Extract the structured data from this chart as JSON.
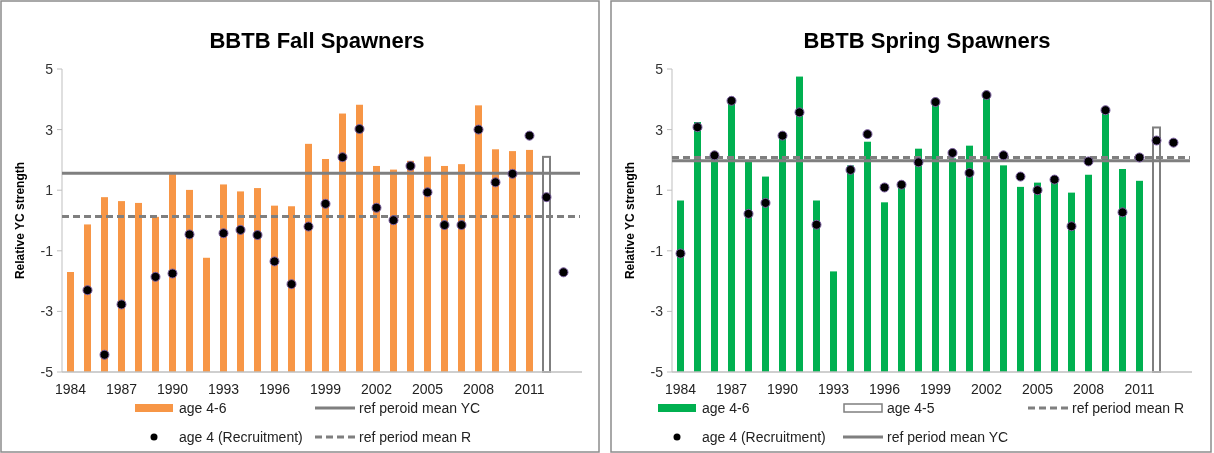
{
  "chart_data": [
    {
      "type": "bar",
      "title": "BBTB Fall Spawners",
      "ylabel": "Relative YC strength",
      "categories": [
        "1984",
        null,
        null,
        "1987",
        null,
        null,
        "1990",
        null,
        null,
        "1993",
        null,
        null,
        "1996",
        null,
        null,
        "1999",
        null,
        null,
        "2002",
        null,
        null,
        "2005",
        null,
        null,
        "2008",
        null,
        null,
        "2011",
        null,
        null
      ],
      "series": [
        {
          "name": "age 4-6",
          "color": "#f79646",
          "base": [
            -5,
            -5,
            -5,
            -5,
            -5,
            -5,
            -5,
            -5,
            -5,
            -5,
            -5,
            -5,
            -5,
            -5,
            -5,
            -5,
            -5,
            -5,
            -5,
            -5,
            -5,
            -5,
            -5,
            -5,
            -5,
            -5,
            -5,
            -5,
            null,
            null
          ],
          "values": [
            3.3,
            4.87,
            5.77,
            5.64,
            5.58,
            5.12,
            6.53,
            6.01,
            3.77,
            6.19,
            5.96,
            6.07,
            5.49,
            5.47,
            7.53,
            7.03,
            8.53,
            8.82,
            6.8,
            6.68,
            6.97,
            7.11,
            6.8,
            6.86,
            8.8,
            7.35,
            7.29,
            7.33,
            null,
            null
          ]
        },
        {
          "name": "age 4 (Recruitment)",
          "type": "scatter",
          "color": "#000000",
          "marker": "circle",
          "values": [
            null,
            -2.3,
            -4.43,
            -2.77,
            null,
            -1.86,
            -1.75,
            -0.46,
            null,
            -0.42,
            -0.31,
            -0.48,
            -1.35,
            -2.1,
            -0.2,
            0.55,
            2.09,
            3.02,
            0.42,
            0.01,
            1.8,
            0.93,
            -0.15,
            -0.15,
            3.0,
            1.26,
            1.54,
            2.8,
            0.77,
            -1.71
          ]
        },
        {
          "color": "#7f7f7f",
          "base": [
            null,
            null,
            null,
            null,
            null,
            null,
            null,
            null,
            null,
            null,
            null,
            null,
            null,
            null,
            null,
            null,
            null,
            null,
            null,
            null,
            null,
            null,
            null,
            null,
            null,
            null,
            null,
            null,
            -5,
            null
          ],
          "values": [
            null,
            null,
            null,
            null,
            null,
            null,
            null,
            null,
            null,
            null,
            null,
            null,
            null,
            null,
            null,
            null,
            null,
            null,
            null,
            null,
            null,
            null,
            null,
            null,
            null,
            null,
            null,
            null,
            7.1,
            null
          ]
        }
      ],
      "ref_lines": [
        {
          "axis": "y",
          "value": 1.56,
          "label": "ref peroid mean YC",
          "color": "#7f7f7f",
          "line_style": "solid"
        },
        {
          "axis": "y",
          "value": 0.13,
          "label": "ref period mean R",
          "color": "#7f7f7f",
          "line_style": "dashed"
        }
      ],
      "ylim": [
        -5,
        5
      ],
      "yticks": [
        -5,
        -3,
        -1,
        1,
        3,
        5
      ],
      "grid": false,
      "legend": "bottom"
    },
    {
      "type": "bar",
      "title": "BBTB Spring Spawners",
      "ylabel": "Relative YC strength",
      "categories": [
        "1984",
        null,
        null,
        "1987",
        null,
        null,
        "1990",
        null,
        null,
        "1993",
        null,
        null,
        "1996",
        null,
        null,
        "1999",
        null,
        null,
        "2002",
        null,
        null,
        "2005",
        null,
        null,
        "2008",
        null,
        null,
        "2011",
        null,
        null
      ],
      "series": [
        {
          "name": "age 4-6",
          "color": "#00b050",
          "base": [
            -5,
            -5,
            -5,
            -5,
            -5,
            -5,
            -5,
            -5,
            -5,
            -5,
            -5,
            -5,
            -5,
            -5,
            -5,
            -5,
            -5,
            -5,
            -5,
            -5,
            -5,
            -5,
            -5,
            -5,
            -5,
            -5,
            -5,
            -5,
            null,
            null
          ],
          "values": [
            5.66,
            8.25,
            7.05,
            8.92,
            6.98,
            6.45,
            7.77,
            9.75,
            5.66,
            3.32,
            6.82,
            7.6,
            5.6,
            6.12,
            7.37,
            8.91,
            7.05,
            7.47,
            9.14,
            6.82,
            6.11,
            6.25,
            6.28,
            5.92,
            6.51,
            8.62,
            6.7,
            6.31,
            null,
            null
          ]
        },
        {
          "name": "age 4 (Recruitment)",
          "type": "scatter",
          "color": "#000000",
          "marker": "circle",
          "values": [
            -1.09,
            3.08,
            2.15,
            3.95,
            0.22,
            0.58,
            2.8,
            3.57,
            -0.14,
            null,
            1.67,
            2.85,
            1.09,
            1.18,
            1.92,
            3.91,
            2.23,
            1.57,
            4.14,
            2.15,
            1.45,
            1.0,
            1.35,
            -0.19,
            1.95,
            3.64,
            0.27,
            2.08,
            2.64,
            2.57
          ]
        },
        {
          "name": "age 4-5",
          "color": "#7f7f7f",
          "base": [
            null,
            null,
            null,
            null,
            null,
            null,
            null,
            null,
            null,
            null,
            null,
            null,
            null,
            null,
            null,
            null,
            null,
            null,
            null,
            null,
            null,
            null,
            null,
            null,
            null,
            null,
            null,
            null,
            -5,
            null
          ],
          "values": [
            null,
            null,
            null,
            null,
            null,
            null,
            null,
            null,
            null,
            null,
            null,
            null,
            null,
            null,
            null,
            null,
            null,
            null,
            null,
            null,
            null,
            null,
            null,
            null,
            null,
            null,
            null,
            null,
            8.07,
            null
          ]
        }
      ],
      "ref_lines": [
        {
          "axis": "y",
          "value": 1.97,
          "label": "ref period mean YC",
          "color": "#7f7f7f",
          "line_style": "solid"
        },
        {
          "axis": "y",
          "value": 2.08,
          "label": "ref period mean R",
          "color": "#7f7f7f",
          "line_style": "dashed"
        }
      ],
      "ylim": [
        -5,
        5
      ],
      "yticks": [
        -5,
        -3,
        -1,
        1,
        3,
        5
      ],
      "grid": false,
      "legend": "bottom"
    }
  ]
}
